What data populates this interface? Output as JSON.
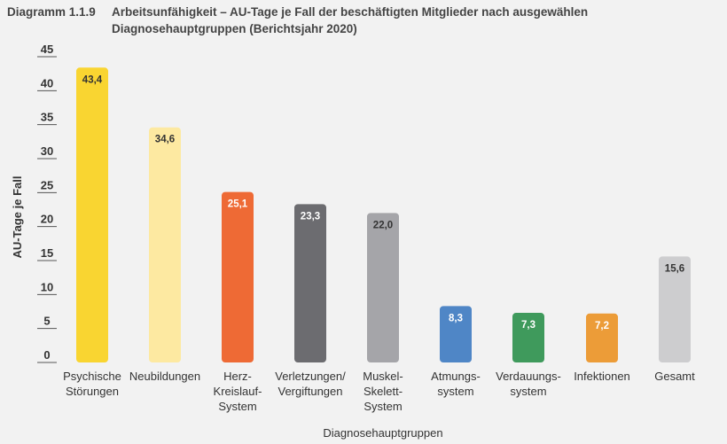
{
  "header": {
    "number": "Diagramm 1.1.9",
    "title": "Arbeitsunfähigkeit – AU-Tage je Fall der beschäftigten Mitglieder nach ausgewählen Diagnosehauptgruppen (Berichtsjahr 2020)"
  },
  "chart_data": {
    "type": "bar",
    "title": "Arbeitsunfähigkeit – AU-Tage je Fall der beschäftigten Mitglieder nach ausgewählen Diagnosehauptgruppen (Berichtsjahr 2020)",
    "xlabel": "Diagnosehauptgruppen",
    "ylabel": "AU-Tage je Fall",
    "ylim": [
      0,
      45
    ],
    "yticks": [
      0,
      5,
      10,
      15,
      20,
      25,
      30,
      35,
      40,
      45
    ],
    "grid": false,
    "categories": [
      [
        "Psychische",
        "Störungen"
      ],
      [
        "Neubildungen"
      ],
      [
        "Herz-",
        "Kreislauf-",
        "System"
      ],
      [
        "Verletzungen/",
        "Vergiftungen"
      ],
      [
        "Muskel-",
        "Skelett-",
        "System"
      ],
      [
        "Atmungs-",
        "system"
      ],
      [
        "Verdauungs-",
        "system"
      ],
      [
        "Infektionen"
      ],
      [
        "Gesamt"
      ]
    ],
    "values": [
      43.4,
      34.6,
      25.1,
      23.3,
      22.0,
      8.3,
      7.3,
      7.2,
      15.6
    ],
    "value_labels": [
      "43,4",
      "34,6",
      "25,1",
      "23,3",
      "22,0",
      "8,3",
      "7,3",
      "7,2",
      "15,6"
    ],
    "colors": [
      "#f9d531",
      "#fde9a1",
      "#ee6a35",
      "#6c6c70",
      "#a5a5a9",
      "#4f86c6",
      "#3f9a5c",
      "#ec9c38",
      "#cdcdcf"
    ],
    "label_colors": [
      "#333333",
      "#333333",
      "#ffffff",
      "#ffffff",
      "#333333",
      "#ffffff",
      "#ffffff",
      "#ffffff",
      "#333333"
    ]
  }
}
